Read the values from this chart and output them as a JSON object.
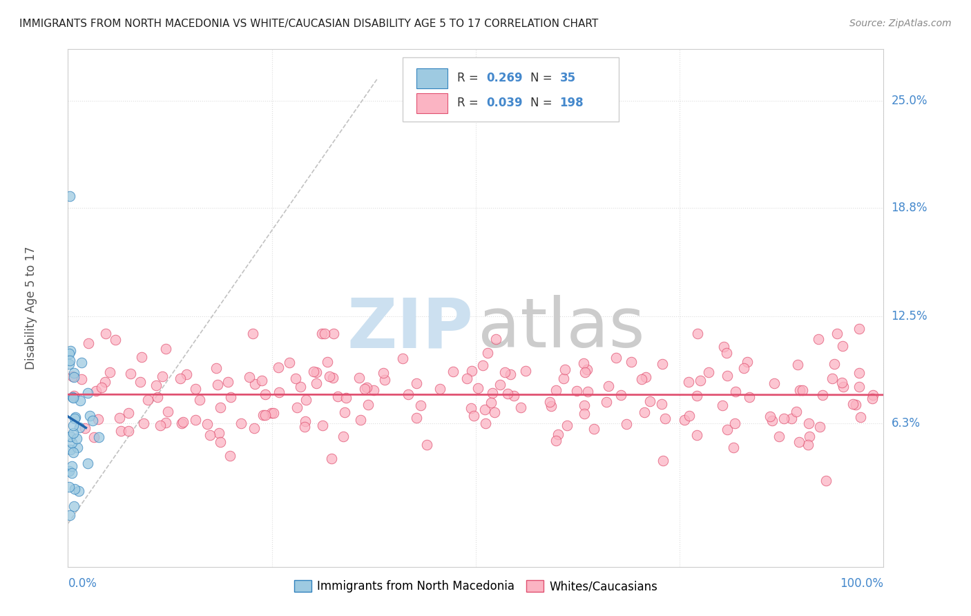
{
  "title": "IMMIGRANTS FROM NORTH MACEDONIA VS WHITE/CAUCASIAN DISABILITY AGE 5 TO 17 CORRELATION CHART",
  "source": "Source: ZipAtlas.com",
  "ylabel": "Disability Age 5 to 17",
  "yticks": [
    "6.3%",
    "12.5%",
    "18.8%",
    "25.0%"
  ],
  "ytick_vals": [
    0.063,
    0.125,
    0.188,
    0.25
  ],
  "blue_color": "#9ecae1",
  "blue_edge_color": "#3182bd",
  "blue_line_color": "#2166ac",
  "pink_color": "#fbb4c3",
  "pink_edge_color": "#e05070",
  "pink_line_color": "#e05070",
  "dashed_line_color": "#bbbbbb",
  "blue_R": 0.269,
  "blue_N": 35,
  "pink_R": 0.039,
  "pink_N": 198,
  "xlim": [
    0.0,
    1.0
  ],
  "ylim": [
    -0.02,
    0.28
  ],
  "title_color": "#222222",
  "source_color": "#888888",
  "axis_label_color": "#4488cc",
  "ylabel_color": "#555555",
  "grid_color": "#dddddd",
  "watermark_zip_color": "#cce0f0",
  "watermark_atlas_color": "#cccccc"
}
